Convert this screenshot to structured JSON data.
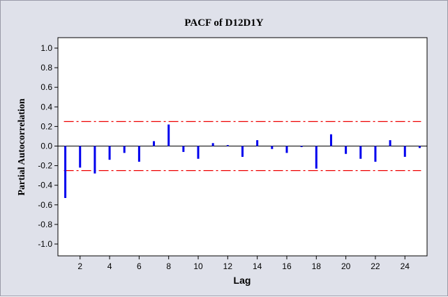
{
  "chart_data": {
    "type": "bar",
    "title": "PACF of D12D1Y",
    "xlabel": "Lag",
    "ylabel": "Partial Autocorrelation",
    "ylim": [
      -1.0,
      1.0
    ],
    "xlim": [
      0.5,
      25.5
    ],
    "yticks": [
      "1.0",
      "0.8",
      "0.6",
      "0.4",
      "0.2",
      "0.0",
      "-0.2",
      "-0.4",
      "-0.6",
      "-0.8",
      "-1.0"
    ],
    "ytick_values": [
      1.0,
      0.8,
      0.6,
      0.4,
      0.2,
      0.0,
      -0.2,
      -0.4,
      -0.6,
      -0.8,
      -1.0
    ],
    "xticks": [
      "2",
      "4",
      "6",
      "8",
      "10",
      "12",
      "14",
      "16",
      "18",
      "20",
      "22",
      "24"
    ],
    "xtick_values": [
      2,
      4,
      6,
      8,
      10,
      12,
      14,
      16,
      18,
      20,
      22,
      24
    ],
    "x": [
      1,
      2,
      3,
      4,
      5,
      6,
      7,
      8,
      9,
      10,
      11,
      12,
      13,
      14,
      15,
      16,
      17,
      18,
      19,
      20,
      21,
      22,
      23,
      24,
      25
    ],
    "values": [
      -0.53,
      -0.22,
      -0.28,
      -0.14,
      -0.07,
      -0.16,
      0.05,
      0.22,
      -0.06,
      -0.13,
      0.03,
      0.01,
      -0.11,
      0.06,
      -0.03,
      -0.07,
      -0.01,
      -0.23,
      0.12,
      -0.08,
      -0.13,
      -0.16,
      0.06,
      -0.11,
      -0.02
    ],
    "significance_limits": [
      0.25,
      -0.25
    ],
    "grid": false,
    "colors": {
      "bars": "#0000ee",
      "limits": "#ee0000",
      "background": "#dfe1ea",
      "plot_area": "#ffffff"
    }
  }
}
